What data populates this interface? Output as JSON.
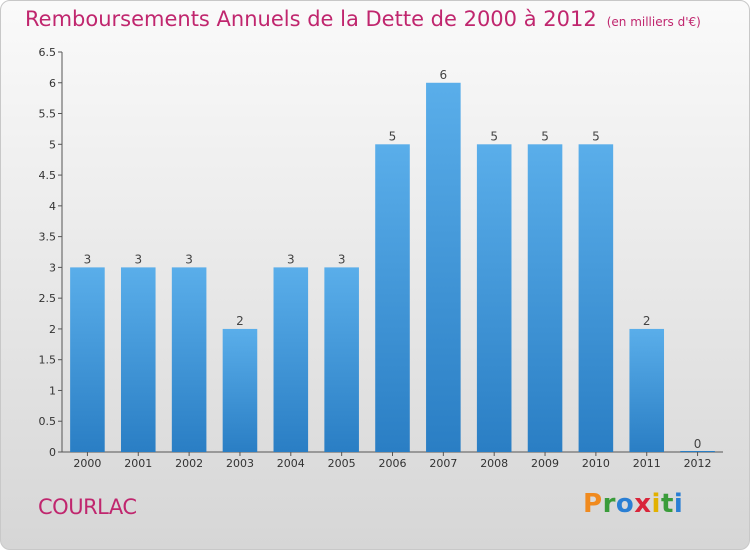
{
  "title": "Remboursements Annuels de la Dette de 2000 à 2012",
  "unit_note": "(en milliers d'€)",
  "city": "COURLAC",
  "brand": {
    "letters": [
      "P",
      "r",
      "o",
      "x",
      "i",
      "t",
      "i"
    ],
    "colors": [
      "#f08a1e",
      "#3a9c3a",
      "#2a7fd4",
      "#d9253a",
      "#e2b100",
      "#3a9c3a",
      "#2a7fd4"
    ]
  },
  "colors": {
    "bar": "#3d92d8",
    "bar_light": "#5aaeea",
    "title": "#c0266e"
  },
  "chart_data": {
    "type": "bar",
    "title": "Remboursements Annuels de la Dette de 2000 à 2012",
    "unit": "(en milliers d'€)",
    "xlabel": "",
    "ylabel": "",
    "categories": [
      "2000",
      "2001",
      "2002",
      "2003",
      "2004",
      "2005",
      "2006",
      "2007",
      "2008",
      "2009",
      "2010",
      "2011",
      "2012"
    ],
    "values": [
      3,
      3,
      3,
      2,
      3,
      3,
      5,
      6,
      5,
      5,
      5,
      2,
      0
    ],
    "ylim": [
      0,
      6.5
    ],
    "yticks": [
      "0",
      "0.5",
      "1",
      "1.5",
      "2",
      "2.5",
      "3",
      "3.5",
      "4",
      "4.5",
      "5",
      "5.5",
      "6",
      "6.5"
    ],
    "grid": false,
    "legend": "none"
  }
}
